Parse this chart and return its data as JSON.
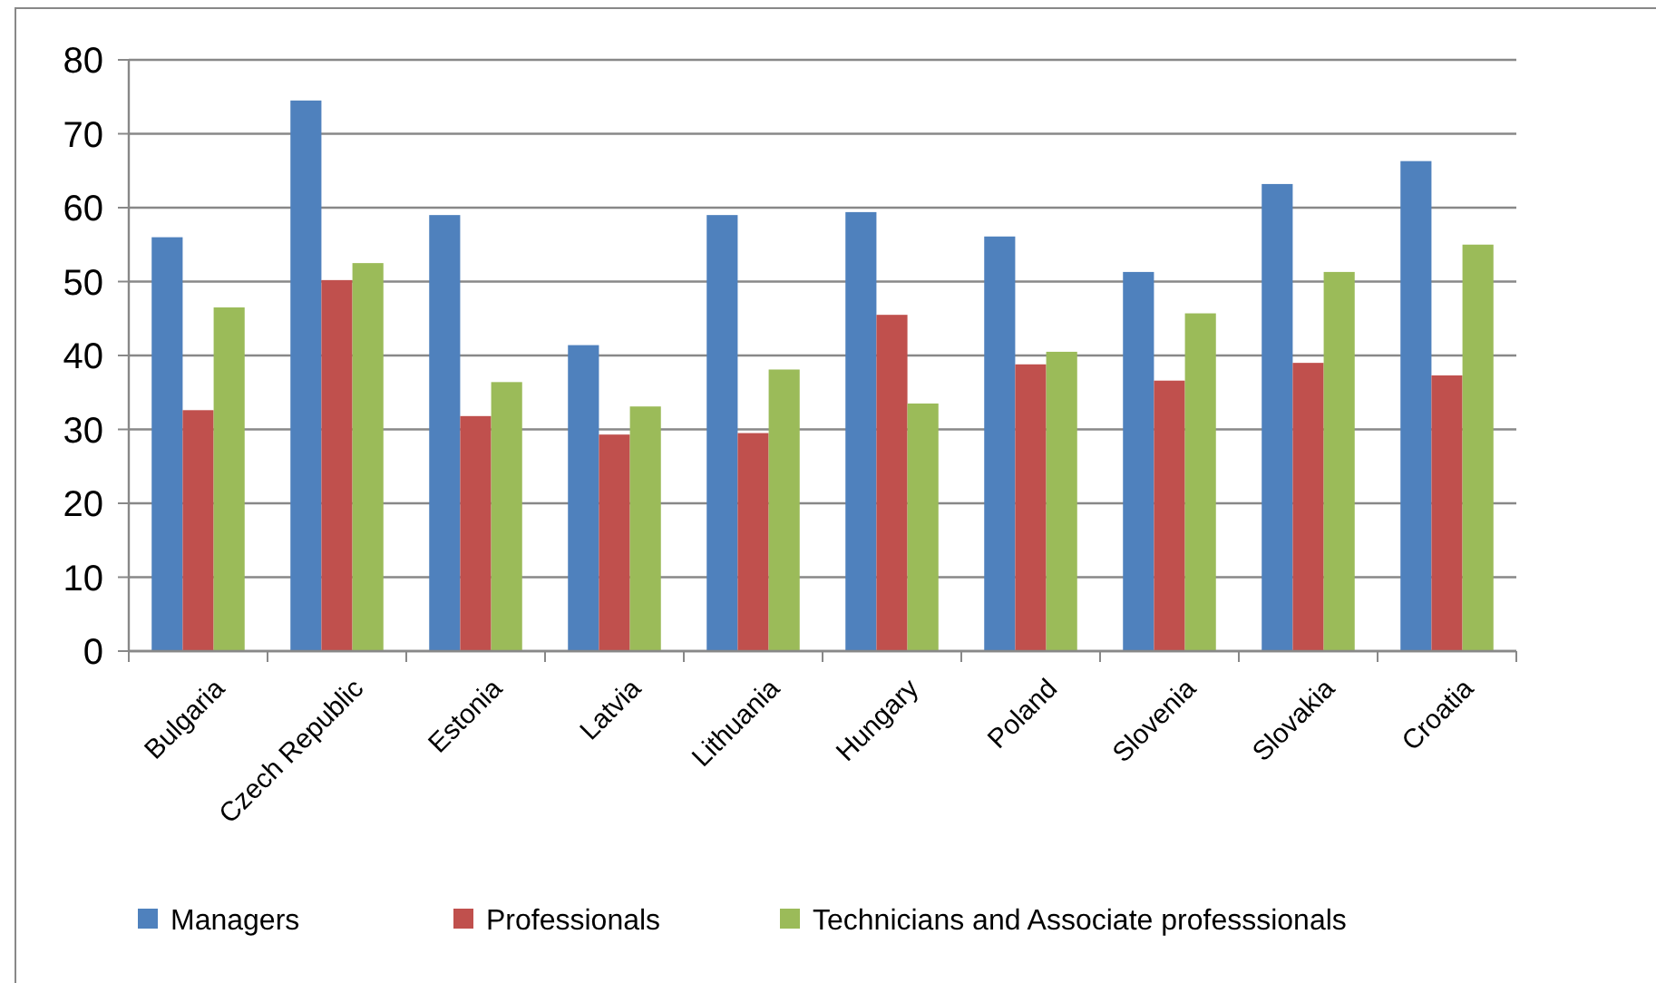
{
  "chart_data": {
    "type": "bar",
    "categories": [
      "Bulgaria",
      "Czech Republic",
      "Estonia",
      "Latvia",
      "Lithuania",
      "Hungary",
      "Poland",
      "Slovenia",
      "Slovakia",
      "Croatia"
    ],
    "series": [
      {
        "name": "Managers",
        "color": "#4f81bd",
        "values": [
          56,
          74.5,
          59,
          41.4,
          59,
          59.4,
          56.1,
          51.3,
          63.2,
          66.3
        ]
      },
      {
        "name": "Professionals",
        "color": "#c0504d",
        "values": [
          32.6,
          50.2,
          31.8,
          29.3,
          29.5,
          45.5,
          38.8,
          36.6,
          39,
          37.3
        ]
      },
      {
        "name": "Technicians and Associate professsionals",
        "color": "#9bbb59",
        "values": [
          46.5,
          52.5,
          36.4,
          33.1,
          38.1,
          33.5,
          40.5,
          45.7,
          51.3,
          55
        ]
      }
    ],
    "ylim": [
      0,
      80
    ],
    "yticks": [
      0,
      10,
      20,
      30,
      40,
      50,
      60,
      70,
      80
    ],
    "grid": "y",
    "legend": "bottom"
  }
}
